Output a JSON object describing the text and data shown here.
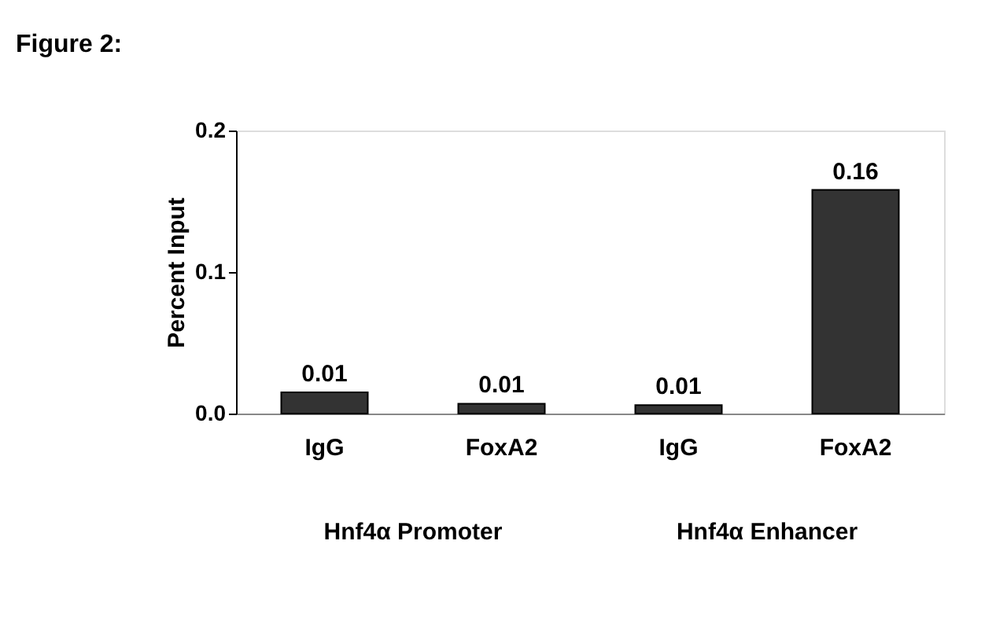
{
  "chart_data": {
    "type": "bar",
    "title": "Figure 2:",
    "ylabel": "Percent Input",
    "categories": [
      "IgG",
      "FoxA2",
      "IgG",
      "FoxA2"
    ],
    "values": [
      0.015,
      0.007,
      0.006,
      0.158
    ],
    "value_labels": [
      "0.01",
      "0.01",
      "0.01",
      "0.16"
    ],
    "color": "#333333",
    "ylim": [
      0,
      0.2
    ],
    "yticks": [
      {
        "value": 0,
        "label": "0.0"
      },
      {
        "value": 0.1,
        "label": "0.1"
      },
      {
        "value": 0.2,
        "label": "0.2"
      }
    ],
    "annotations": [
      "Hnf4α Promoter",
      "Hnf4α Enhancer"
    ],
    "grid": false
  }
}
